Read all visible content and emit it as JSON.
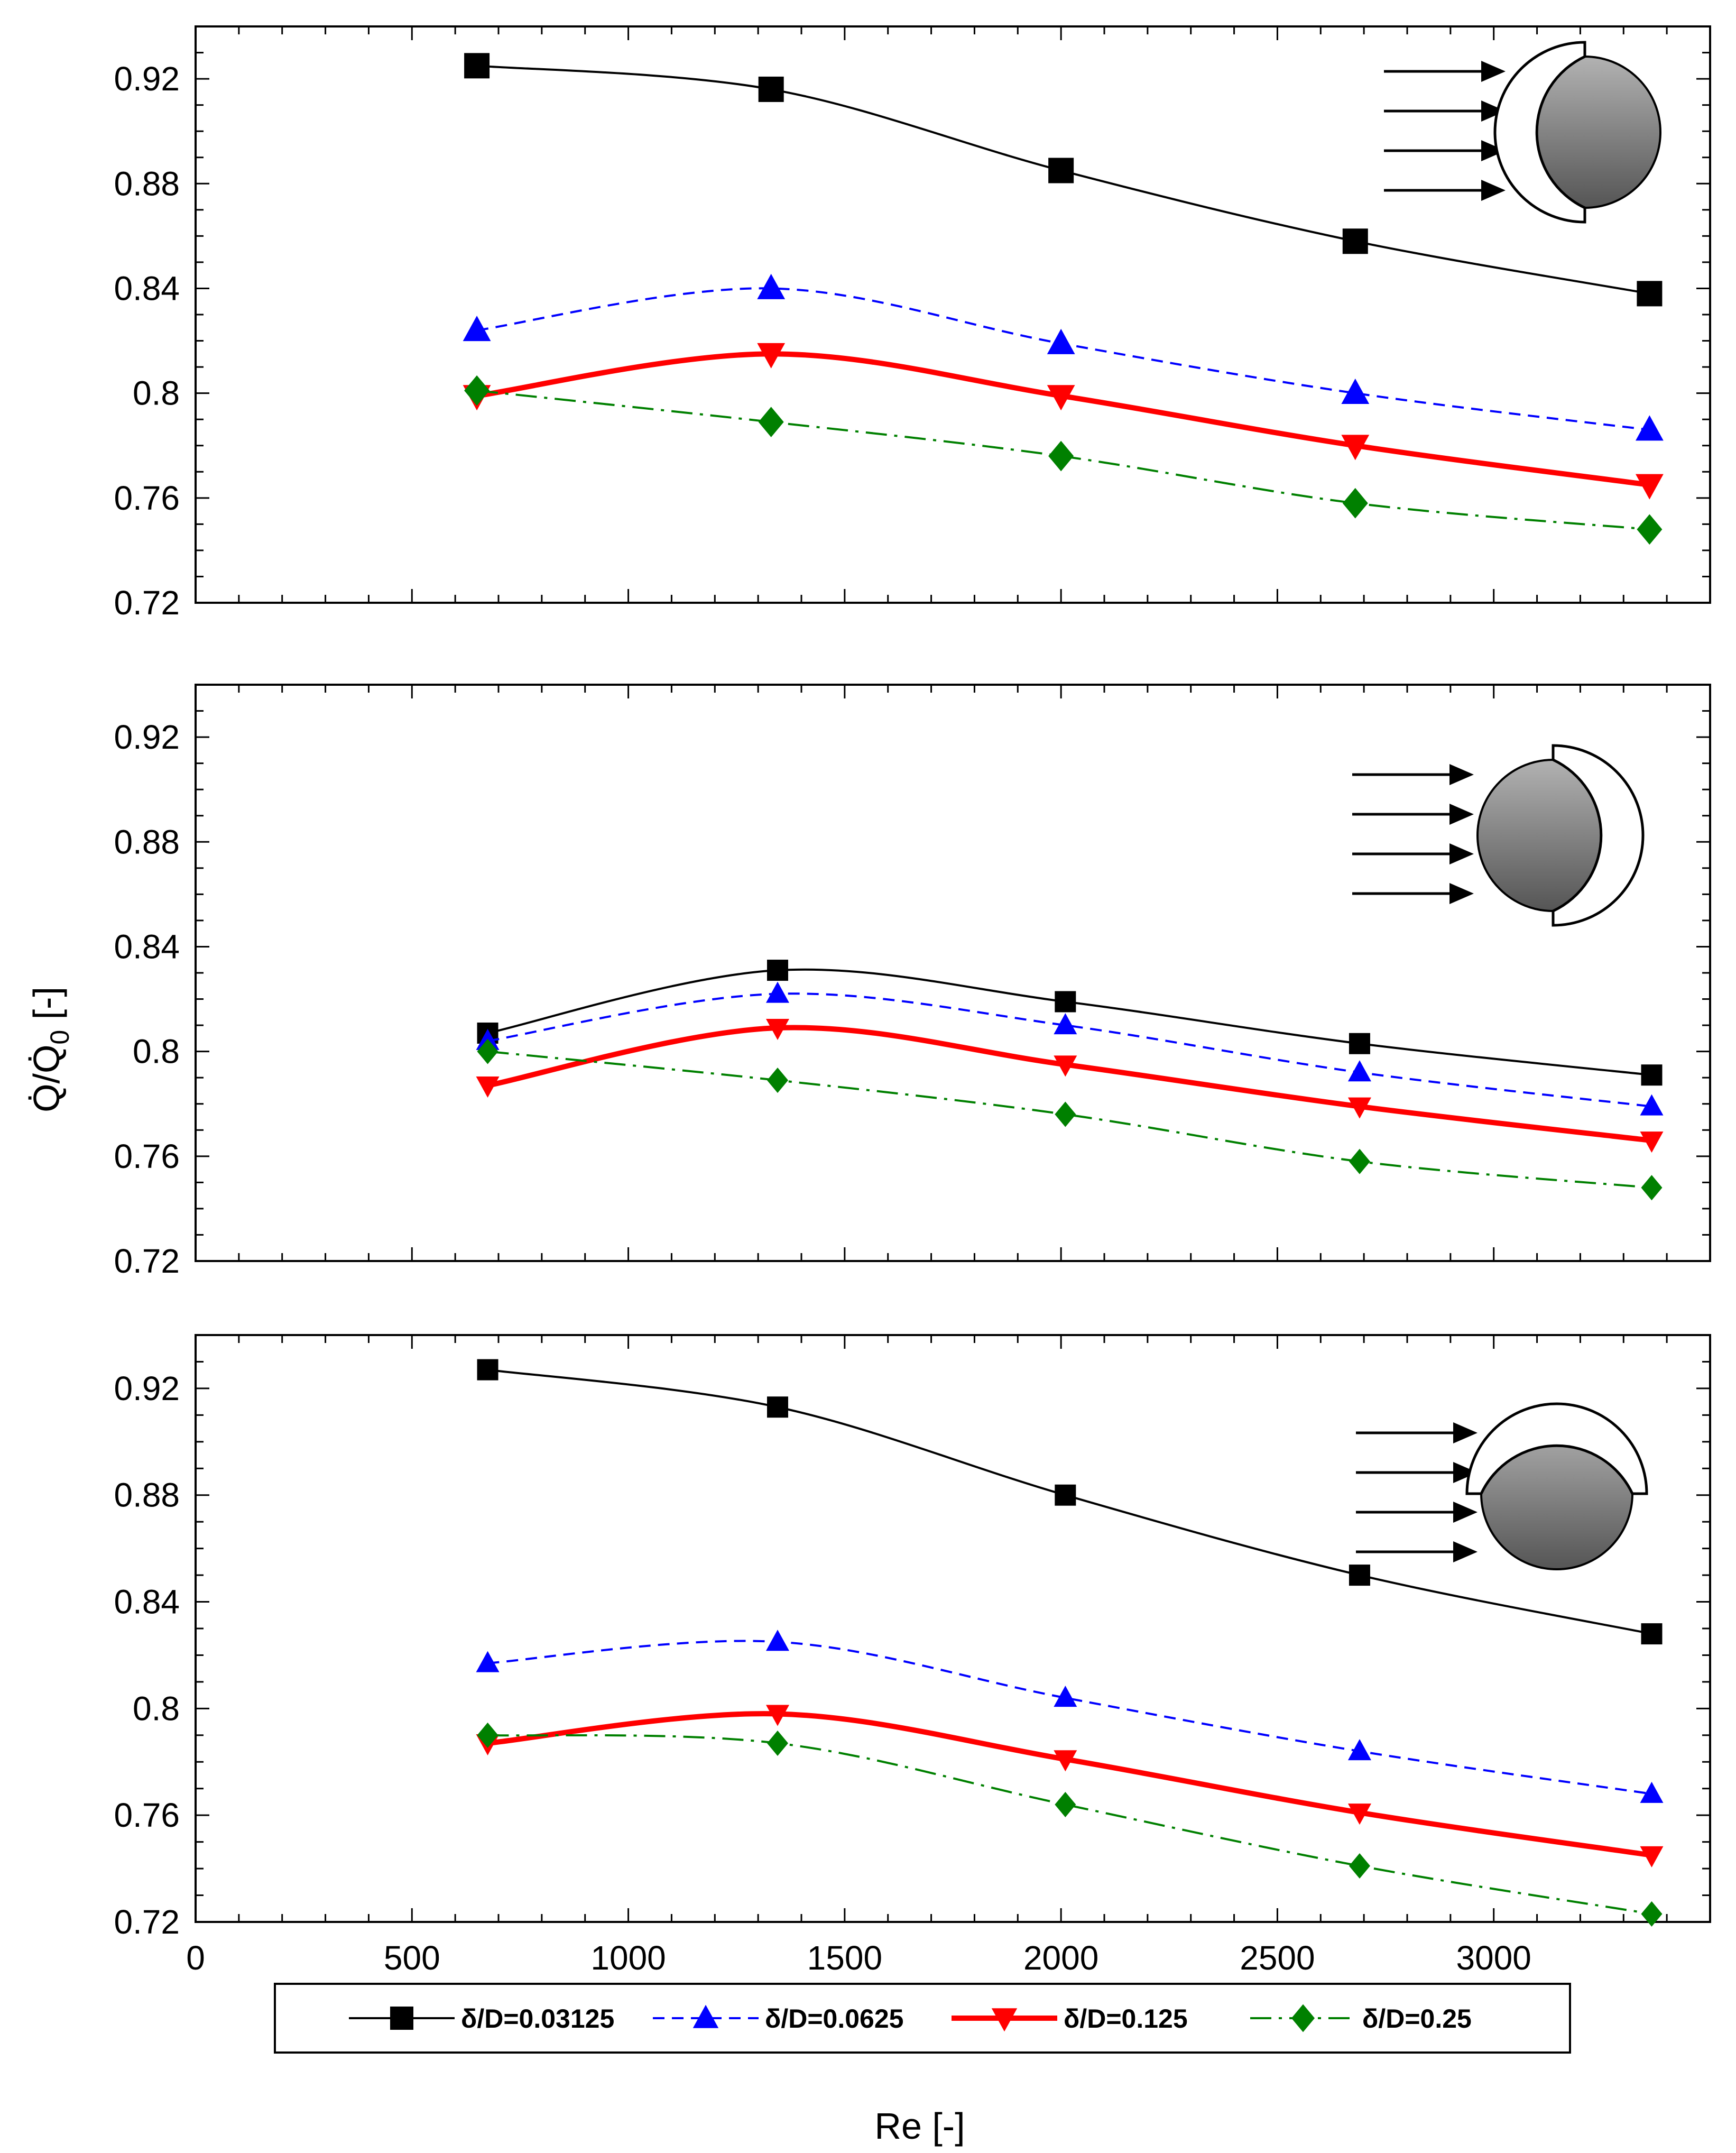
{
  "chart_data": {
    "type": "line",
    "ylabel": "Q̇/Q̇",
    "ylabel_sub": "0",
    "ylabel_unit": " [-]",
    "xlabel": "Re [-]",
    "xlim": [
      0,
      3500
    ],
    "ylim": [
      0.72,
      0.94
    ],
    "x_ticks": [
      0,
      500,
      1000,
      1500,
      2000,
      2500,
      3000
    ],
    "y_ticks": [
      0.72,
      0.76,
      0.8,
      0.84,
      0.88,
      0.92
    ],
    "y_tick_labels": [
      "0.72",
      "0.76",
      "0.8",
      "0.84",
      "0.88",
      "0.92"
    ],
    "legend": [
      {
        "label": "δ/D=0.03125",
        "color": "#000000",
        "marker": "square",
        "dash": "solid"
      },
      {
        "label": "δ/D=0.0625",
        "color": "#0000ff",
        "marker": "triangle-up",
        "dash": "dashed"
      },
      {
        "label": "δ/D=0.125",
        "color": "#ff0000",
        "marker": "triangle-down",
        "dash": "solid-thick"
      },
      {
        "label": "δ/D=0.25",
        "color": "#008000",
        "marker": "diamond",
        "dash": "dash-dot"
      }
    ],
    "panels": [
      {
        "name": "top",
        "inset": "cover-upstream",
        "series": [
          {
            "name": "δ/D=0.03125",
            "x": [
              650,
              1330,
              2000,
              2680,
              3360
            ],
            "y": [
              0.925,
              0.916,
              0.885,
              0.858,
              0.838
            ]
          },
          {
            "name": "δ/D=0.0625",
            "x": [
              650,
              1330,
              2000,
              2680,
              3360
            ],
            "y": [
              0.824,
              0.84,
              0.819,
              0.8,
              0.786
            ]
          },
          {
            "name": "δ/D=0.125",
            "x": [
              650,
              1330,
              2000,
              2680,
              3360
            ],
            "y": [
              0.799,
              0.815,
              0.799,
              0.78,
              0.765
            ]
          },
          {
            "name": "δ/D=0.25",
            "x": [
              650,
              1330,
              2000,
              2680,
              3360
            ],
            "y": [
              0.801,
              0.789,
              0.776,
              0.758,
              0.748
            ]
          }
        ]
      },
      {
        "name": "middle",
        "inset": "cover-downstream",
        "series": [
          {
            "name": "δ/D=0.03125",
            "x": [
              675,
              1345,
              2010,
              2690,
              3365
            ],
            "y": [
              0.807,
              0.831,
              0.819,
              0.803,
              0.791
            ]
          },
          {
            "name": "δ/D=0.0625",
            "x": [
              675,
              1345,
              2010,
              2690,
              3365
            ],
            "y": [
              0.804,
              0.822,
              0.81,
              0.792,
              0.779
            ]
          },
          {
            "name": "δ/D=0.125",
            "x": [
              675,
              1345,
              2010,
              2690,
              3365
            ],
            "y": [
              0.787,
              0.809,
              0.795,
              0.779,
              0.766
            ]
          },
          {
            "name": "δ/D=0.25",
            "x": [
              675,
              1345,
              2010,
              2690,
              3365
            ],
            "y": [
              0.8,
              0.789,
              0.776,
              0.758,
              0.748
            ]
          }
        ]
      },
      {
        "name": "bottom",
        "inset": "cover-top",
        "series": [
          {
            "name": "δ/D=0.03125",
            "x": [
              675,
              1345,
              2010,
              2690,
              3365
            ],
            "y": [
              0.927,
              0.913,
              0.88,
              0.85,
              0.828
            ]
          },
          {
            "name": "δ/D=0.0625",
            "x": [
              675,
              1345,
              2010,
              2690,
              3365
            ],
            "y": [
              0.817,
              0.825,
              0.804,
              0.784,
              0.768
            ]
          },
          {
            "name": "δ/D=0.125",
            "x": [
              675,
              1345,
              2010,
              2690,
              3365
            ],
            "y": [
              0.787,
              0.798,
              0.781,
              0.761,
              0.745
            ]
          },
          {
            "name": "δ/D=0.25",
            "x": [
              675,
              1345,
              2010,
              2690,
              3365
            ],
            "y": [
              0.79,
              0.787,
              0.764,
              0.741,
              0.723
            ]
          }
        ]
      }
    ]
  }
}
